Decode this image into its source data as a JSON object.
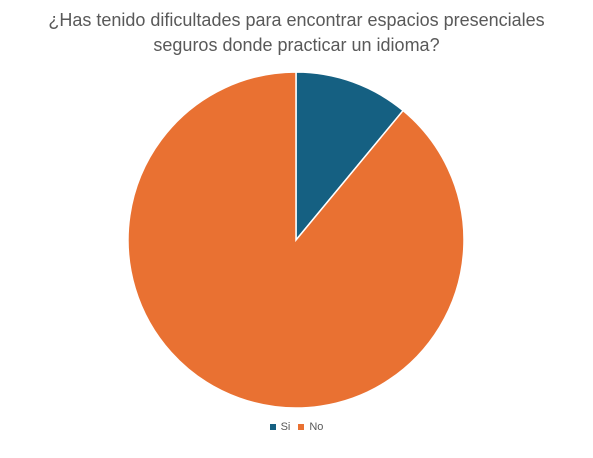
{
  "chart_data": {
    "type": "pie",
    "title_lines": [
      "¿Has tenido dificultades para encontrar espacios presenciales",
      "seguros donde practicar un idioma?"
    ],
    "categories": [
      "Si",
      "No"
    ],
    "values": [
      11,
      89
    ],
    "colors": [
      "#156082",
      "#E97132"
    ],
    "legend": "bottom"
  }
}
